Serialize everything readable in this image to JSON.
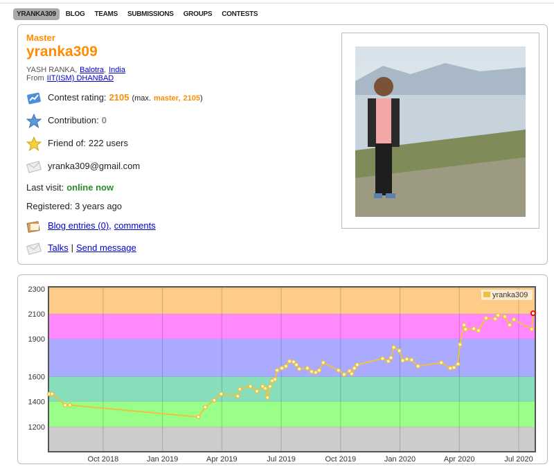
{
  "nav": {
    "items": [
      "YRANKA309",
      "BLOG",
      "TEAMS",
      "SUBMISSIONS",
      "GROUPS",
      "CONTESTS"
    ]
  },
  "profile": {
    "rank": "Master",
    "handle": "yranka309",
    "name": "YASH RANKA",
    "separator": ",",
    "city": "Balotra",
    "country": "India",
    "from_label": "From",
    "organization": "IIT(ISM) DHANBAD",
    "rating_label": "Contest rating:",
    "rating": 2105,
    "max_prefix": "(max.",
    "max_rank": "master,",
    "max_rating": 2105,
    "max_suffix": ")",
    "contribution_label": "Contribution:",
    "contribution": 0,
    "friend_label": "Friend of:",
    "friends": "222 users",
    "email": "yranka309@gmail.com",
    "last_visit_label": "Last visit:",
    "last_visit": "online now",
    "registered": "Registered: 3 years ago",
    "blog": "Blog entries (0)",
    "comments": "comments",
    "talks": "Talks",
    "talks_separator": "|",
    "send_message": "Send message"
  },
  "chart_data": {
    "type": "line",
    "x": [
      2018.523,
      2018.535,
      2018.59,
      2018.61,
      2019.151,
      2019.18,
      2019.218,
      2019.247,
      2019.317,
      2019.326,
      2019.37,
      2019.398,
      2019.422,
      2019.433,
      2019.442,
      2019.453,
      2019.462,
      2019.474,
      2019.483,
      2019.503,
      2019.52,
      2019.535,
      2019.552,
      2019.564,
      2019.576,
      2019.61,
      2019.628,
      2019.645,
      2019.66,
      2019.677,
      2019.741,
      2019.765,
      2019.788,
      2019.797,
      2019.808,
      2019.82,
      2019.927,
      2019.951,
      2019.962,
      2019.974,
      2019.997,
      2020.012,
      2020.029,
      2020.049,
      2020.076,
      2020.174,
      2020.212,
      2020.227,
      2020.244,
      2020.253,
      2020.27,
      2020.276,
      2020.311,
      2020.331,
      2020.363,
      2020.401,
      2020.413,
      2020.442,
      2020.462,
      2020.48,
      2020.555,
      2020.561
    ],
    "series": [
      {
        "name": "yranka309",
        "color": "#edc240",
        "values": [
          1461,
          1461,
          1372,
          1372,
          1278,
          1356,
          1411,
          1461,
          1444,
          1500,
          1522,
          1483,
          1522,
          1506,
          1433,
          1522,
          1567,
          1578,
          1650,
          1667,
          1683,
          1722,
          1717,
          1694,
          1661,
          1667,
          1639,
          1633,
          1650,
          1711,
          1650,
          1617,
          1644,
          1622,
          1667,
          1694,
          1744,
          1722,
          1750,
          1833,
          1806,
          1728,
          1739,
          1733,
          1683,
          1711,
          1667,
          1672,
          1700,
          1856,
          2011,
          1978,
          1983,
          1967,
          2067,
          2061,
          2089,
          2078,
          2011,
          2056,
          1978,
          2105
        ]
      }
    ],
    "xlim": [
      2018.52,
      2020.57
    ],
    "xticks": [
      {
        "value": 2018.75,
        "label": "Oct 2018"
      },
      {
        "value": 2019,
        "label": "Jan 2019"
      },
      {
        "value": 2019.25,
        "label": "Apr 2019"
      },
      {
        "value": 2019.5,
        "label": "Jul 2019"
      },
      {
        "value": 2019.75,
        "label": "Oct 2019"
      },
      {
        "value": 2020,
        "label": "Jan 2020"
      },
      {
        "value": 2020.25,
        "label": "Apr 2020"
      },
      {
        "value": 2020.5,
        "label": "Jul 2020"
      }
    ],
    "ylim": [
      1000,
      2316
    ],
    "yticks": [
      1200,
      1400,
      1600,
      1900,
      2100,
      2300
    ],
    "bands": [
      {
        "from": 1000,
        "to": 1200,
        "color": "#cccccc"
      },
      {
        "from": 1200,
        "to": 1400,
        "color": "#99ff88"
      },
      {
        "from": 1400,
        "to": 1600,
        "color": "#88ddbb"
      },
      {
        "from": 1600,
        "to": 1900,
        "color": "#aaaaff"
      },
      {
        "from": 1900,
        "to": 2100,
        "color": "#ff88ff"
      },
      {
        "from": 2100,
        "to": 2316,
        "color": "#ffcc88"
      }
    ],
    "grid": true,
    "legend": "top-right",
    "last_point_color": "#ff0000"
  }
}
